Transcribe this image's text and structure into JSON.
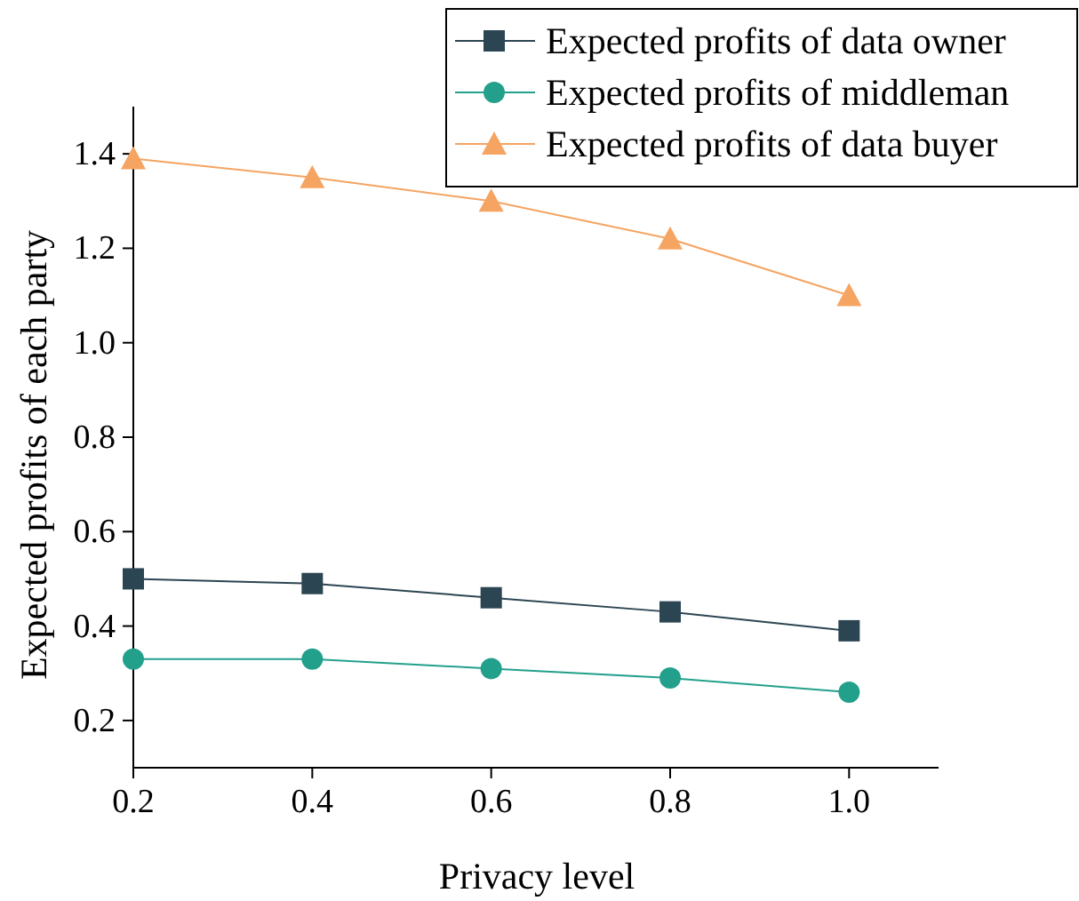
{
  "chart_data": {
    "type": "line",
    "xlabel": "Privacy level",
    "ylabel": "Expected profits of each party",
    "x": [
      0.2,
      0.4,
      0.6,
      0.8,
      1.0
    ],
    "series": [
      {
        "name": "Expected profits of data owner",
        "color": "#2b4552",
        "marker": "square",
        "values": [
          0.5,
          0.49,
          0.46,
          0.43,
          0.39
        ]
      },
      {
        "name": "Expected profits of middleman",
        "color": "#22a08c",
        "marker": "circle",
        "values": [
          0.33,
          0.33,
          0.31,
          0.29,
          0.26
        ]
      },
      {
        "name": "Expected profits of data buyer",
        "color": "#f5a462",
        "marker": "triangle",
        "values": [
          1.39,
          1.35,
          1.3,
          1.22,
          1.1
        ]
      }
    ],
    "xlim": [
      0.2,
      1.1
    ],
    "ylim": [
      0.1,
      1.5
    ],
    "xticks": [
      0.2,
      0.4,
      0.6,
      0.8,
      {
        "value": 1,
        "label": "1.0"
      }
    ],
    "yticks": [
      0.2,
      0.4,
      0.6,
      0.8,
      {
        "value": 1,
        "label": "1.0"
      },
      1.2,
      1.4
    ],
    "grid": false,
    "legend": "top right",
    "line_style": "solid"
  }
}
